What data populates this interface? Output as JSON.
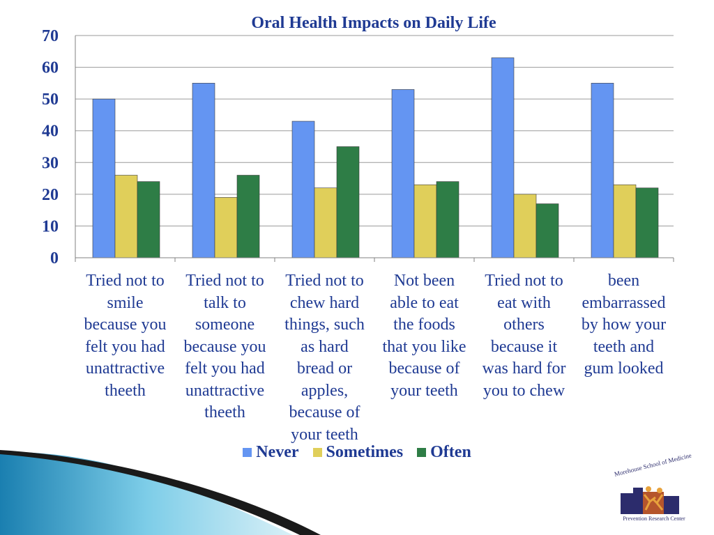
{
  "chart_data": {
    "type": "bar",
    "title": "Oral Health Impacts on Daily Life",
    "categories": [
      [
        "Tried not to",
        "smile",
        "because you",
        "felt you had",
        "unattractive",
        "theeth"
      ],
      [
        "Tried not to",
        "talk to",
        "someone",
        "because you",
        "felt you had",
        "unattractive",
        "theeth"
      ],
      [
        "Tried not to",
        "chew hard",
        "things, such",
        "as hard",
        "bread or",
        "apples,",
        "because of",
        "your teeth"
      ],
      [
        "Not been",
        "able to eat",
        "the foods",
        "that you like",
        "because of",
        "your teeth"
      ],
      [
        "Tried not to",
        "eat with",
        "others",
        "because it",
        "was hard for",
        "you to chew"
      ],
      [
        "been",
        "embarrassed",
        "by how your",
        "teeth and",
        "gum looked"
      ]
    ],
    "series": [
      {
        "name": "Never",
        "values": [
          50,
          55,
          43,
          53,
          63,
          55
        ],
        "color": "#6495f2"
      },
      {
        "name": "Sometimes",
        "values": [
          26,
          19,
          22,
          23,
          20,
          23
        ],
        "color": "#e0cf5a"
      },
      {
        "name": "Often",
        "values": [
          24,
          26,
          35,
          24,
          17,
          22
        ],
        "color": "#2e7d46"
      }
    ],
    "ylim": [
      0,
      70
    ],
    "yticks": [
      0,
      10,
      20,
      30,
      40,
      50,
      60,
      70
    ],
    "grid": true,
    "legend": "bottom"
  },
  "logo": {
    "org": "Morehouse School of Medicine",
    "center": "Prevention Research Center"
  }
}
